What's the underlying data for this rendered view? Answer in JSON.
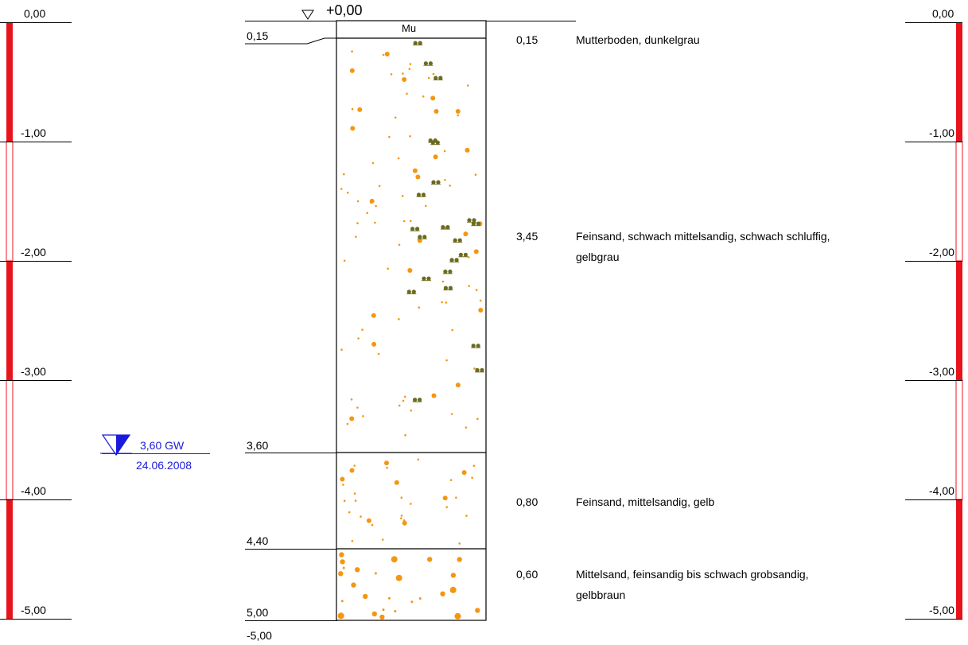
{
  "scale": {
    "ticks": [
      "0,00",
      "-1,00",
      "-2,00",
      "-3,00",
      "-4,00",
      "-5,00"
    ],
    "bar_color": "#e8141c"
  },
  "surface": {
    "label": "+0,00"
  },
  "profile": {
    "bottom_label": "-5,00",
    "head_symbol": "Mu",
    "layers": [
      {
        "depth_label": "0,15",
        "thickness": "0,15",
        "description": "Mutterboden, dunkelgrau"
      },
      {
        "depth_label": "3,60",
        "thickness": "3,45",
        "description": "Feinsand, schwach mittelsandig, schwach schluffig, gelbgrau"
      },
      {
        "depth_label": "4,40",
        "thickness": "0,80",
        "description": "Feinsand, mittelsandig, gelb"
      },
      {
        "depth_label": "5,00",
        "thickness": "0,60",
        "description": "Mittelsand, feinsandig bis schwach grobsandig, gelbbraun"
      }
    ]
  },
  "groundwater": {
    "level": "3,60 GW",
    "date": "24.06.2008",
    "color": "#1a1adc"
  },
  "colors": {
    "sand_dot": "#f5960f",
    "silt_symbol": "#6b6b1e"
  }
}
